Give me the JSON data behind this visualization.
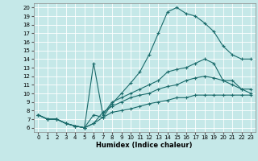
{
  "xlabel": "Humidex (Indice chaleur)",
  "bg_color": "#c5e8e8",
  "line_color": "#1a6b6b",
  "grid_color": "#ffffff",
  "xlim": [
    -0.5,
    23.5
  ],
  "ylim": [
    5.5,
    20.5
  ],
  "xticks": [
    0,
    1,
    2,
    3,
    4,
    5,
    6,
    7,
    8,
    9,
    10,
    11,
    12,
    13,
    14,
    15,
    16,
    17,
    18,
    19,
    20,
    21,
    22,
    23
  ],
  "yticks": [
    6,
    7,
    8,
    9,
    10,
    11,
    12,
    13,
    14,
    15,
    16,
    17,
    18,
    19,
    20
  ],
  "lines": [
    {
      "x": [
        0,
        1,
        2,
        3,
        4,
        5,
        6,
        7,
        8,
        9,
        10,
        11,
        12,
        13,
        14,
        15,
        16,
        17,
        18,
        19,
        20,
        21,
        22,
        23
      ],
      "y": [
        7.5,
        7.0,
        7.0,
        6.5,
        6.2,
        6.0,
        7.5,
        7.2,
        8.8,
        10.0,
        11.2,
        12.5,
        14.5,
        17.0,
        19.5,
        20.0,
        19.3,
        19.0,
        18.2,
        17.2,
        15.5,
        14.5,
        14.0,
        14.0
      ]
    },
    {
      "x": [
        0,
        1,
        2,
        3,
        4,
        5,
        6,
        7,
        8,
        9,
        10,
        11,
        12,
        13,
        14,
        15,
        16,
        17,
        18,
        19,
        20,
        21,
        22,
        23
      ],
      "y": [
        7.5,
        7.0,
        7.0,
        6.5,
        6.2,
        6.0,
        13.5,
        7.5,
        9.0,
        9.5,
        10.0,
        10.5,
        11.0,
        11.5,
        12.5,
        12.8,
        13.0,
        13.5,
        14.0,
        13.5,
        11.5,
        11.5,
        10.5,
        10.5
      ]
    },
    {
      "x": [
        0,
        1,
        2,
        3,
        4,
        5,
        6,
        7,
        8,
        9,
        10,
        11,
        12,
        13,
        14,
        15,
        16,
        17,
        18,
        19,
        20,
        21,
        22,
        23
      ],
      "y": [
        7.5,
        7.0,
        7.0,
        6.5,
        6.2,
        6.0,
        6.5,
        7.8,
        8.5,
        9.0,
        9.5,
        9.8,
        10.0,
        10.5,
        10.8,
        11.0,
        11.5,
        11.8,
        12.0,
        11.8,
        11.5,
        11.0,
        10.5,
        10.0
      ]
    },
    {
      "x": [
        0,
        1,
        2,
        3,
        4,
        5,
        6,
        7,
        8,
        9,
        10,
        11,
        12,
        13,
        14,
        15,
        16,
        17,
        18,
        19,
        20,
        21,
        22,
        23
      ],
      "y": [
        7.5,
        7.0,
        7.0,
        6.5,
        6.2,
        6.0,
        6.5,
        7.2,
        7.8,
        8.0,
        8.2,
        8.5,
        8.8,
        9.0,
        9.2,
        9.5,
        9.5,
        9.8,
        9.8,
        9.8,
        9.8,
        9.8,
        9.8,
        9.8
      ]
    }
  ]
}
